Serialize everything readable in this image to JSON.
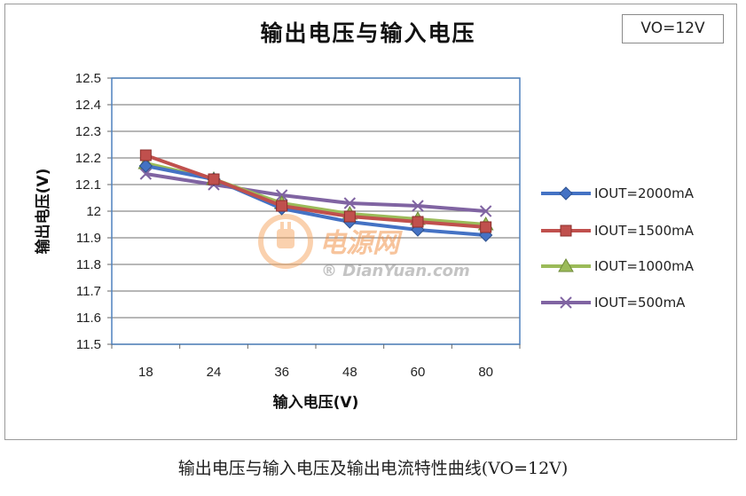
{
  "chart_data": {
    "type": "line",
    "title": "输出电压与输入电压",
    "xlabel": "输入电压(V)",
    "ylabel": "输出电压(V)",
    "categories": [
      "18",
      "24",
      "36",
      "48",
      "60",
      "80"
    ],
    "ylim": [
      11.5,
      12.5
    ],
    "yticks": [
      "12.5",
      "12.4",
      "12.3",
      "12.2",
      "12.1",
      "12",
      "11.9",
      "11.8",
      "11.7",
      "11.6",
      "11.5"
    ],
    "grid": true,
    "legend_position": "right",
    "series": [
      {
        "name": "IOUT=2000mA",
        "color": "#4472c4",
        "marker": "diamond",
        "values": [
          12.17,
          12.12,
          12.01,
          11.96,
          11.93,
          11.91
        ]
      },
      {
        "name": "IOUT=1500mA",
        "color": "#c0504d",
        "marker": "square",
        "values": [
          12.21,
          12.12,
          12.02,
          11.98,
          11.96,
          11.94
        ]
      },
      {
        "name": "IOUT=1000mA",
        "color": "#9bbb59",
        "marker": "triangle",
        "values": [
          12.18,
          12.12,
          12.03,
          11.99,
          11.97,
          11.95
        ]
      },
      {
        "name": "IOUT=500mA",
        "color": "#8064a2",
        "marker": "x",
        "values": [
          12.14,
          12.1,
          12.06,
          12.03,
          12.02,
          12.0
        ]
      }
    ]
  },
  "vo_label": "VO=12V",
  "caption": "输出电压与输入电压及输出电流特性曲线(VO=12V)",
  "watermark": {
    "line1": "电源网",
    "line2": "® DianYuan.com"
  }
}
